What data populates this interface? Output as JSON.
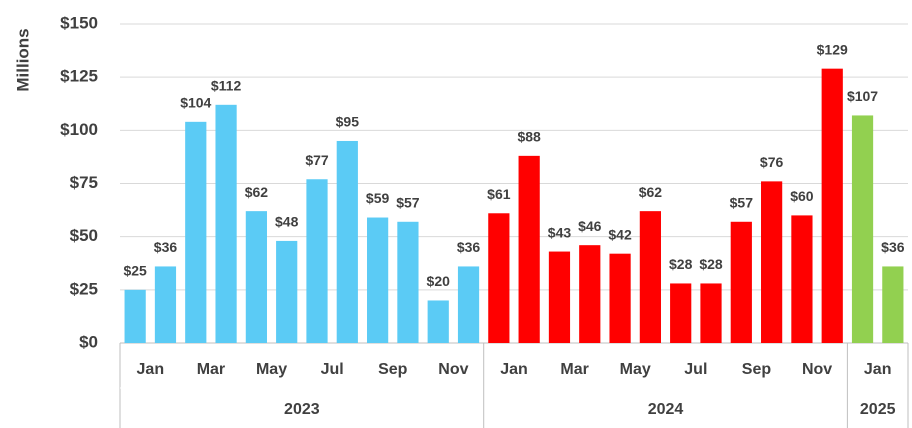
{
  "chart_data": {
    "type": "bar",
    "y_label": "Millions",
    "categories": [
      "Jan",
      null,
      "Mar",
      null,
      "May",
      null,
      "Jul",
      null,
      "Sep",
      null,
      "Nov",
      null,
      "Jan",
      null,
      "Mar",
      null,
      "May",
      null,
      "Jul",
      null,
      "Sep",
      null,
      "Nov",
      null,
      "Jan",
      null
    ],
    "series": [
      {
        "name": "2023",
        "color": "#5bcbf5",
        "values": [
          25,
          36,
          104,
          112,
          62,
          48,
          77,
          95,
          59,
          57,
          20,
          36,
          null,
          null,
          null,
          null,
          null,
          null,
          null,
          null,
          null,
          null,
          null,
          null,
          null,
          null
        ],
        "value_labels": [
          "$25",
          "$36",
          "$104",
          "$112",
          "$62",
          "$48",
          "$77",
          "$95",
          "$59",
          "$57",
          "$20",
          "$36",
          null,
          null,
          null,
          null,
          null,
          null,
          null,
          null,
          null,
          null,
          null,
          null,
          null,
          null
        ]
      },
      {
        "name": "2024",
        "color": "#ff0000",
        "values": [
          null,
          null,
          null,
          null,
          null,
          null,
          null,
          null,
          null,
          null,
          null,
          null,
          61,
          88,
          43,
          46,
          42,
          62,
          28,
          28,
          57,
          76,
          60,
          129,
          null,
          null
        ],
        "value_labels": [
          null,
          null,
          null,
          null,
          null,
          null,
          null,
          null,
          null,
          null,
          null,
          null,
          "$61",
          "$88",
          "$43",
          "$46",
          "$42",
          "$62",
          "$28",
          "$28",
          "$57",
          "$76",
          "$60",
          "$129",
          null,
          null
        ]
      },
      {
        "name": "2025",
        "color": "#92d050",
        "values": [
          null,
          null,
          null,
          null,
          null,
          null,
          null,
          null,
          null,
          null,
          null,
          null,
          null,
          null,
          null,
          null,
          null,
          null,
          null,
          null,
          null,
          null,
          null,
          null,
          107,
          36
        ],
        "value_labels": [
          null,
          null,
          null,
          null,
          null,
          null,
          null,
          null,
          null,
          null,
          null,
          null,
          null,
          null,
          null,
          null,
          null,
          null,
          null,
          null,
          null,
          null,
          null,
          null,
          "$107",
          "$36"
        ]
      }
    ],
    "ylim": [
      0,
      150
    ],
    "yticks": [
      {
        "value": 0,
        "label": "$0"
      },
      {
        "value": 25,
        "label": "$25"
      },
      {
        "value": 50,
        "label": "$50"
      },
      {
        "value": 75,
        "label": "$75"
      },
      {
        "value": 100,
        "label": "$100"
      },
      {
        "value": 125,
        "label": "$125"
      },
      {
        "value": 150,
        "label": "$150"
      }
    ],
    "grid": true
  }
}
